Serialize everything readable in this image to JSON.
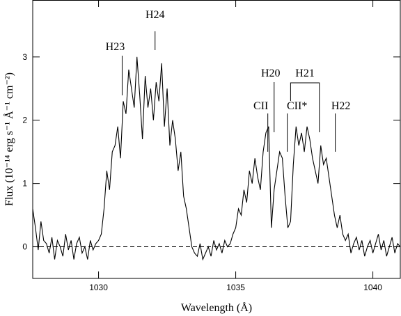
{
  "chart_data": {
    "type": "line",
    "x_label": "Wavelength (Å)",
    "y_label": "Flux (10⁻¹⁴ erg s⁻¹ Å⁻¹ cm⁻²)",
    "x": [
      1027.6,
      1027.7,
      1027.8,
      1027.9,
      1028.0,
      1028.1,
      1028.2,
      1028.3,
      1028.4,
      1028.5,
      1028.6,
      1028.7,
      1028.8,
      1028.9,
      1029.0,
      1029.1,
      1029.2,
      1029.3,
      1029.4,
      1029.5,
      1029.6,
      1029.7,
      1029.8,
      1029.9,
      1030.0,
      1030.1,
      1030.2,
      1030.3,
      1030.4,
      1030.5,
      1030.6,
      1030.7,
      1030.8,
      1030.9,
      1031.0,
      1031.1,
      1031.2,
      1031.3,
      1031.4,
      1031.5,
      1031.6,
      1031.7,
      1031.8,
      1031.9,
      1032.0,
      1032.1,
      1032.2,
      1032.3,
      1032.4,
      1032.5,
      1032.6,
      1032.7,
      1032.8,
      1032.9,
      1033.0,
      1033.1,
      1033.2,
      1033.3,
      1033.4,
      1033.5,
      1033.6,
      1033.7,
      1033.8,
      1033.9,
      1034.0,
      1034.1,
      1034.2,
      1034.3,
      1034.4,
      1034.5,
      1034.6,
      1034.7,
      1034.8,
      1034.9,
      1035.0,
      1035.1,
      1035.2,
      1035.3,
      1035.4,
      1035.5,
      1035.6,
      1035.7,
      1035.8,
      1035.9,
      1036.0,
      1036.1,
      1036.2,
      1036.3,
      1036.4,
      1036.5,
      1036.6,
      1036.7,
      1036.8,
      1036.9,
      1037.0,
      1037.1,
      1037.2,
      1037.3,
      1037.4,
      1037.5,
      1037.6,
      1037.7,
      1037.8,
      1037.9,
      1038.0,
      1038.1,
      1038.2,
      1038.3,
      1038.4,
      1038.5,
      1038.6,
      1038.7,
      1038.8,
      1038.9,
      1039.0,
      1039.1,
      1039.2,
      1039.3,
      1039.4,
      1039.5,
      1039.6,
      1039.7,
      1039.8,
      1039.9,
      1040.0,
      1040.1,
      1040.2,
      1040.3,
      1040.4,
      1040.5,
      1040.6,
      1040.7,
      1040.8,
      1040.9,
      1041.0
    ],
    "series": [
      {
        "color": "#000000",
        "values": [
          0.6,
          0.3,
          -0.05,
          0.4,
          0.1,
          0.05,
          -0.1,
          0.15,
          -0.2,
          0.1,
          0.0,
          -0.15,
          0.2,
          -0.05,
          0.1,
          -0.2,
          0.05,
          0.15,
          -0.1,
          0.0,
          -0.2,
          0.1,
          -0.05,
          0.05,
          0.1,
          0.2,
          0.6,
          1.2,
          0.9,
          1.5,
          1.6,
          1.9,
          1.4,
          2.3,
          2.1,
          2.8,
          2.5,
          2.2,
          3.0,
          2.4,
          1.7,
          2.7,
          2.2,
          2.5,
          2.0,
          2.6,
          2.3,
          2.9,
          1.9,
          2.5,
          1.6,
          2.0,
          1.7,
          1.2,
          1.5,
          0.8,
          0.6,
          0.3,
          0.0,
          -0.1,
          -0.15,
          0.05,
          -0.2,
          -0.1,
          0.0,
          -0.15,
          0.1,
          -0.05,
          0.05,
          -0.1,
          0.1,
          0.0,
          0.05,
          0.2,
          0.3,
          0.6,
          0.5,
          0.9,
          0.7,
          1.2,
          1.0,
          1.4,
          1.1,
          0.9,
          1.5,
          1.8,
          1.9,
          0.3,
          0.9,
          1.2,
          1.5,
          1.4,
          0.8,
          0.3,
          0.4,
          1.3,
          1.9,
          1.6,
          1.8,
          1.5,
          1.9,
          1.7,
          1.4,
          1.2,
          1.0,
          1.6,
          1.3,
          1.4,
          1.1,
          0.8,
          0.5,
          0.3,
          0.5,
          0.2,
          0.1,
          0.2,
          -0.1,
          0.05,
          0.15,
          -0.05,
          0.1,
          -0.15,
          0.0,
          0.1,
          -0.1,
          0.05,
          0.2,
          -0.05,
          0.1,
          -0.15,
          0.0,
          0.15,
          -0.1,
          0.05,
          0.0
        ]
      }
    ],
    "xlim": [
      1027.6,
      1041.0
    ],
    "ylim": [
      -0.5,
      3.9
    ],
    "xticks": [
      1030,
      1035,
      1040
    ],
    "yticks": [
      0,
      1,
      2,
      3
    ],
    "reference_line": 0,
    "annotations": [
      {
        "text": "H23",
        "x": 1030.86
      },
      {
        "text": "H24",
        "x": 1032.06
      },
      {
        "text": "CII",
        "x": 1036.17
      },
      {
        "text": "H20",
        "x": 1036.4
      },
      {
        "text": "CII*",
        "x": 1036.88
      },
      {
        "text": "H21",
        "x": 1037.0,
        "x2": 1038.05
      },
      {
        "text": "H22",
        "x": 1038.63
      }
    ]
  }
}
